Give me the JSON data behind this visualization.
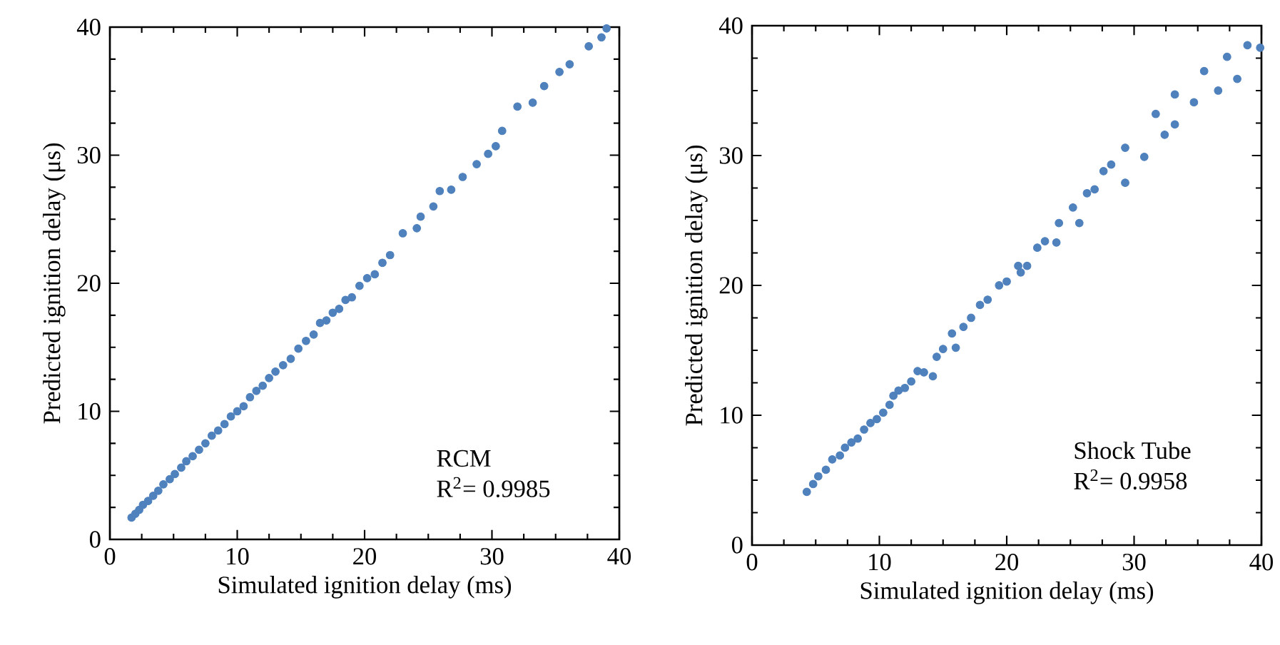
{
  "chart_data": [
    {
      "type": "scatter",
      "xlabel": "Simulated ignition delay (ms)",
      "ylabel": "Predicted ignition delay (μs)",
      "annotations": [
        "RCM",
        "R$^{2}$= 0.9985"
      ],
      "xlim": [
        0,
        40
      ],
      "ylim": [
        0,
        40
      ],
      "xticks": [
        0,
        10,
        20,
        30,
        40
      ],
      "yticks": [
        0,
        10,
        20,
        30,
        40
      ],
      "grid": false,
      "marker": "circle",
      "series": [
        {
          "color": "#4f81bd",
          "x": [
            1.7,
            2.0,
            2.3,
            2.6,
            3.0,
            3.4,
            3.8,
            4.2,
            4.7,
            5.1,
            5.6,
            6.0,
            6.5,
            7.0,
            7.5,
            8.0,
            8.5,
            9.0,
            9.5,
            10.0,
            10.5,
            11.0,
            11.5,
            12.0,
            12.5,
            13.0,
            13.6,
            14.2,
            14.8,
            15.4,
            16.0,
            16.5,
            17.0,
            17.5,
            18.0,
            18.5,
            19.0,
            19.6,
            20.2,
            20.8,
            21.4,
            22.0,
            23.0,
            24.1,
            24.4,
            25.4,
            25.9,
            26.8,
            27.7,
            28.8,
            29.7,
            30.3,
            30.8,
            32.0,
            33.2,
            34.1,
            35.3,
            36.1,
            37.6,
            38.6,
            39.0
          ],
          "values": [
            1.7,
            2.0,
            2.3,
            2.7,
            3.0,
            3.4,
            3.8,
            4.3,
            4.7,
            5.1,
            5.6,
            6.1,
            6.5,
            7.0,
            7.5,
            8.1,
            8.5,
            9.0,
            9.6,
            10.0,
            10.4,
            11.1,
            11.6,
            12.0,
            12.6,
            13.1,
            13.6,
            14.1,
            14.9,
            15.5,
            16.0,
            16.9,
            17.1,
            17.7,
            18.0,
            18.7,
            18.9,
            19.8,
            20.4,
            20.7,
            21.6,
            22.2,
            23.9,
            24.3,
            25.2,
            26.0,
            27.2,
            27.3,
            28.3,
            29.3,
            30.1,
            30.7,
            31.9,
            33.8,
            34.1,
            35.4,
            36.5,
            37.1,
            38.5,
            39.2,
            39.9
          ]
        }
      ]
    },
    {
      "type": "scatter",
      "xlabel": "Simulated ignition delay (ms)",
      "ylabel": "Predicted ignition delay (μs)",
      "annotations": [
        "Shock Tube",
        "R$^{2}$= 0.9958"
      ],
      "xlim": [
        0,
        40
      ],
      "ylim": [
        0,
        40
      ],
      "xticks": [
        0,
        10,
        20,
        30,
        40
      ],
      "yticks": [
        0,
        10,
        20,
        30,
        40
      ],
      "grid": false,
      "marker": "circle",
      "series": [
        {
          "color": "#4f81bd",
          "x": [
            4.3,
            4.8,
            5.2,
            5.8,
            6.3,
            6.9,
            7.3,
            7.8,
            8.3,
            8.8,
            9.3,
            9.8,
            10.3,
            10.8,
            11.1,
            11.5,
            12.0,
            12.5,
            13.0,
            13.5,
            14.2,
            14.5,
            15.0,
            15.7,
            16.0,
            16.6,
            17.2,
            17.9,
            18.5,
            19.4,
            20.0,
            20.9,
            21.1,
            21.6,
            22.4,
            23.0,
            23.9,
            24.1,
            25.2,
            25.7,
            26.3,
            26.9,
            27.6,
            28.2,
            29.3,
            29.3,
            30.8,
            31.7,
            32.4,
            33.2,
            33.2,
            34.7,
            35.5,
            36.6,
            37.3,
            38.1,
            38.9,
            39.9
          ],
          "values": [
            4.1,
            4.7,
            5.3,
            5.8,
            6.6,
            6.9,
            7.5,
            7.9,
            8.2,
            8.9,
            9.4,
            9.7,
            10.2,
            10.8,
            11.5,
            11.9,
            12.1,
            12.6,
            13.4,
            13.3,
            13.0,
            14.5,
            15.1,
            16.3,
            15.2,
            16.8,
            17.5,
            18.5,
            18.9,
            20.0,
            20.3,
            21.5,
            21.0,
            21.5,
            22.9,
            23.4,
            23.3,
            24.8,
            26.0,
            24.8,
            27.1,
            27.4,
            28.8,
            29.3,
            30.6,
            27.9,
            29.9,
            33.2,
            31.6,
            34.7,
            32.4,
            34.1,
            36.5,
            35.0,
            37.6,
            35.9,
            38.5,
            38.3
          ]
        }
      ]
    }
  ]
}
